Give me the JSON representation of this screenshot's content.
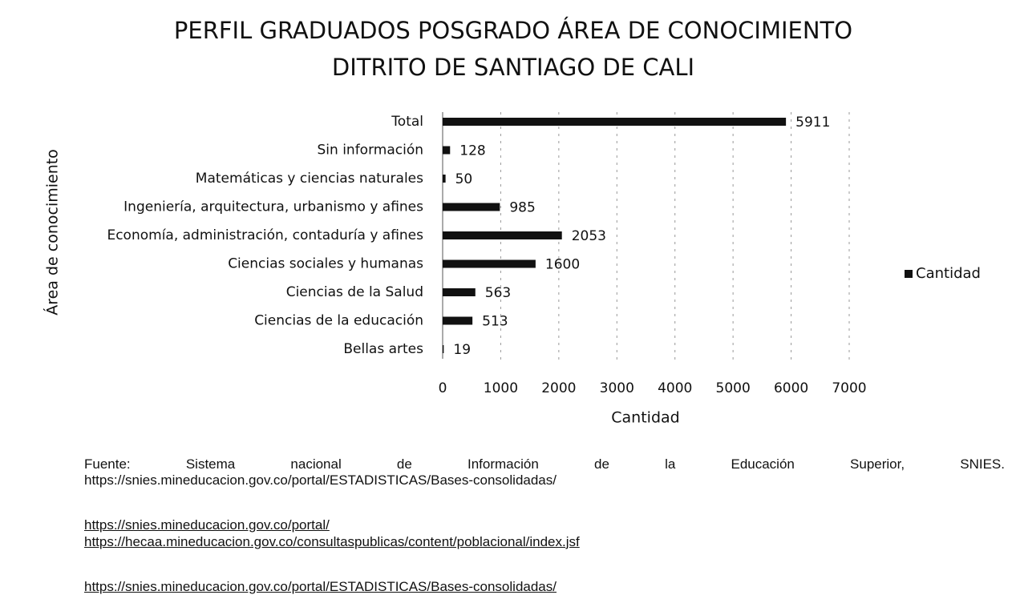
{
  "chart_data": {
    "type": "bar",
    "orientation": "horizontal",
    "title": [
      "PERFIL GRADUADOS POSGRADO ÁREA DE CONOCIMIENTO",
      "DITRITO DE SANTIAGO DE CALI"
    ],
    "categories": [
      "Total",
      "Sin información",
      "Matemáticas y ciencias naturales",
      "Ingeniería, arquitectura, urbanismo y afines",
      "Economía, administración, contaduría y afines",
      "Ciencias sociales y humanas",
      "Ciencias de la Salud",
      "Ciencias de la educación",
      "Bellas artes"
    ],
    "series": [
      {
        "name": "Cantidad",
        "color": "#111111",
        "values": [
          5911,
          128,
          50,
          985,
          2053,
          1600,
          563,
          513,
          19
        ]
      }
    ],
    "xlim": [
      0,
      7000
    ],
    "xticks": [
      0,
      1000,
      2000,
      3000,
      4000,
      5000,
      6000,
      7000
    ],
    "x_label": "Cantidad",
    "y_label": "Área de conocimiento",
    "grid": true,
    "legend": "right",
    "data_labels": true
  },
  "footer": {
    "source": "Fuente: Sistema nacional de Información de la Educación Superior, SNIES.",
    "source_url": "https://snies.mineducacion.gov.co/portal/ESTADISTICAS/Bases-consolidadas/",
    "links": [
      "https://snies.mineducacion.gov.co/portal/",
      "https://hecaa.mineducacion.gov.co/consultaspublicas/content/poblacional/index.jsf",
      "https://snies.mineducacion.gov.co/portal/ESTADISTICAS/Bases-consolidadas/"
    ]
  }
}
